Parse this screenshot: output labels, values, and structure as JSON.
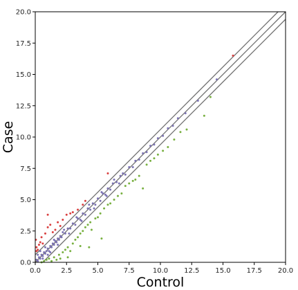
{
  "chart_data": {
    "type": "scatter",
    "title": "",
    "xlabel": "Control",
    "ylabel": "Case",
    "xlim": [
      0,
      20
    ],
    "ylim": [
      0,
      20
    ],
    "grid": false,
    "legend": "none",
    "x_ticks": [
      "0.0",
      "2.5",
      "5.0",
      "7.5",
      "10.0",
      "12.5",
      "15.0",
      "17.5",
      "20.0"
    ],
    "y_ticks": [
      "0.0",
      "2.5",
      "5.0",
      "7.5",
      "10.0",
      "12.5",
      "15.0",
      "17.5",
      "20.0"
    ],
    "reference_lines": [
      {
        "intercept": 0.6,
        "slope": 1,
        "color": "#6e6e6e"
      },
      {
        "intercept": 0.0,
        "slope": 1,
        "color": "#6e6e6e"
      },
      {
        "intercept": -0.6,
        "slope": 1,
        "color": "#6e6e6e"
      }
    ],
    "series": [
      {
        "color": "#7b72b3",
        "points": [
          [
            0.1,
            0.2
          ],
          [
            0.2,
            0.1
          ],
          [
            0.3,
            0.4
          ],
          [
            0.4,
            0.3
          ],
          [
            0.5,
            0.6
          ],
          [
            0.6,
            0.5
          ],
          [
            0.7,
            0.8
          ],
          [
            0.8,
            0.7
          ],
          [
            0.9,
            0.9
          ],
          [
            1.0,
            1.1
          ],
          [
            1.1,
            0.9
          ],
          [
            1.2,
            1.3
          ],
          [
            1.3,
            1.2
          ],
          [
            1.4,
            1.5
          ],
          [
            1.5,
            1.4
          ],
          [
            1.6,
            1.7
          ],
          [
            1.7,
            1.6
          ],
          [
            1.8,
            1.9
          ],
          [
            1.9,
            1.8
          ],
          [
            2.0,
            2.1
          ],
          [
            2.1,
            2.0
          ],
          [
            2.2,
            2.4
          ],
          [
            2.4,
            2.3
          ],
          [
            2.6,
            2.7
          ],
          [
            2.8,
            2.7
          ],
          [
            3.0,
            3.1
          ],
          [
            3.2,
            3.0
          ],
          [
            3.4,
            3.5
          ],
          [
            3.6,
            3.4
          ],
          [
            3.8,
            3.9
          ],
          [
            4.0,
            3.8
          ],
          [
            4.2,
            4.3
          ],
          [
            4.4,
            4.2
          ],
          [
            4.6,
            4.7
          ],
          [
            4.8,
            4.6
          ],
          [
            5.0,
            5.1
          ],
          [
            5.2,
            4.9
          ],
          [
            5.4,
            5.5
          ],
          [
            5.6,
            5.4
          ],
          [
            5.8,
            5.9
          ],
          [
            6.0,
            5.8
          ],
          [
            6.2,
            6.3
          ],
          [
            6.5,
            6.4
          ],
          [
            6.8,
            6.9
          ],
          [
            7.0,
            7.1
          ],
          [
            7.2,
            7.0
          ],
          [
            7.5,
            7.6
          ],
          [
            7.8,
            7.6
          ],
          [
            8.0,
            8.1
          ],
          [
            8.3,
            8.2
          ],
          [
            8.6,
            8.7
          ],
          [
            8.9,
            8.8
          ],
          [
            9.2,
            9.3
          ],
          [
            9.5,
            9.4
          ],
          [
            9.8,
            9.9
          ],
          [
            10.2,
            10.1
          ],
          [
            10.6,
            10.7
          ],
          [
            11.0,
            10.9
          ],
          [
            11.4,
            11.5
          ],
          [
            12.0,
            11.9
          ],
          [
            13.0,
            12.9
          ],
          [
            14.5,
            14.6
          ],
          [
            0.2,
            0.6
          ],
          [
            0.4,
            0.9
          ],
          [
            0.6,
            0.3
          ],
          [
            0.8,
            1.2
          ],
          [
            1.0,
            0.6
          ],
          [
            1.2,
            0.8
          ],
          [
            1.5,
            1.8
          ],
          [
            1.8,
            1.4
          ],
          [
            2.3,
            2.6
          ],
          [
            2.7,
            2.3
          ],
          [
            3.3,
            3.6
          ],
          [
            3.7,
            3.3
          ],
          [
            4.3,
            4.6
          ],
          [
            4.7,
            4.3
          ],
          [
            5.3,
            5.6
          ],
          [
            5.7,
            5.3
          ],
          [
            6.3,
            6.6
          ],
          [
            6.7,
            6.3
          ]
        ]
      },
      {
        "color": "#d94040",
        "points": [
          [
            0.05,
            1.8
          ],
          [
            0.1,
            1.2
          ],
          [
            0.2,
            1.0
          ],
          [
            0.3,
            1.4
          ],
          [
            0.1,
            0.9
          ],
          [
            0.4,
            1.6
          ],
          [
            0.5,
            2.0
          ],
          [
            0.6,
            1.5
          ],
          [
            0.8,
            2.3
          ],
          [
            1.0,
            2.8
          ],
          [
            1.0,
            3.8
          ],
          [
            1.2,
            3.0
          ],
          [
            1.4,
            2.4
          ],
          [
            1.6,
            2.6
          ],
          [
            1.8,
            3.2
          ],
          [
            2.0,
            2.9
          ],
          [
            2.2,
            3.4
          ],
          [
            2.5,
            3.8
          ],
          [
            2.8,
            3.9
          ],
          [
            3.0,
            4.0
          ],
          [
            3.4,
            4.2
          ],
          [
            3.8,
            4.6
          ],
          [
            4.0,
            4.9
          ],
          [
            5.8,
            7.1
          ],
          [
            15.8,
            16.5
          ]
        ]
      },
      {
        "color": "#78b040",
        "points": [
          [
            0.5,
            0.0
          ],
          [
            0.7,
            0.1
          ],
          [
            0.9,
            0.2
          ],
          [
            1.1,
            0.3
          ],
          [
            1.3,
            0.1
          ],
          [
            1.5,
            0.4
          ],
          [
            1.7,
            0.2
          ],
          [
            1.9,
            0.6
          ],
          [
            2.0,
            0.3
          ],
          [
            2.2,
            0.8
          ],
          [
            2.4,
            1.0
          ],
          [
            2.6,
            1.2
          ],
          [
            2.8,
            0.9
          ],
          [
            3.0,
            1.5
          ],
          [
            3.2,
            1.8
          ],
          [
            3.4,
            2.0
          ],
          [
            3.6,
            2.3
          ],
          [
            3.8,
            2.5
          ],
          [
            4.0,
            2.8
          ],
          [
            4.2,
            3.0
          ],
          [
            4.4,
            3.2
          ],
          [
            4.5,
            2.6
          ],
          [
            4.8,
            3.5
          ],
          [
            5.0,
            3.6
          ],
          [
            5.2,
            3.9
          ],
          [
            5.5,
            4.3
          ],
          [
            5.8,
            4.6
          ],
          [
            6.0,
            4.7
          ],
          [
            6.3,
            5.0
          ],
          [
            6.6,
            5.3
          ],
          [
            6.9,
            5.5
          ],
          [
            7.2,
            6.1
          ],
          [
            7.5,
            6.3
          ],
          [
            7.8,
            6.5
          ],
          [
            8.0,
            6.6
          ],
          [
            8.3,
            6.9
          ],
          [
            8.6,
            5.9
          ],
          [
            8.9,
            7.8
          ],
          [
            9.2,
            8.1
          ],
          [
            9.5,
            8.3
          ],
          [
            9.8,
            8.6
          ],
          [
            10.2,
            8.9
          ],
          [
            10.6,
            9.2
          ],
          [
            11.1,
            9.8
          ],
          [
            11.6,
            10.4
          ],
          [
            12.1,
            10.6
          ],
          [
            13.5,
            11.7
          ],
          [
            14.0,
            13.2
          ],
          [
            4.3,
            1.2
          ],
          [
            3.6,
            1.3
          ],
          [
            5.3,
            1.9
          ],
          [
            2.6,
            0.4
          ]
        ]
      }
    ]
  }
}
